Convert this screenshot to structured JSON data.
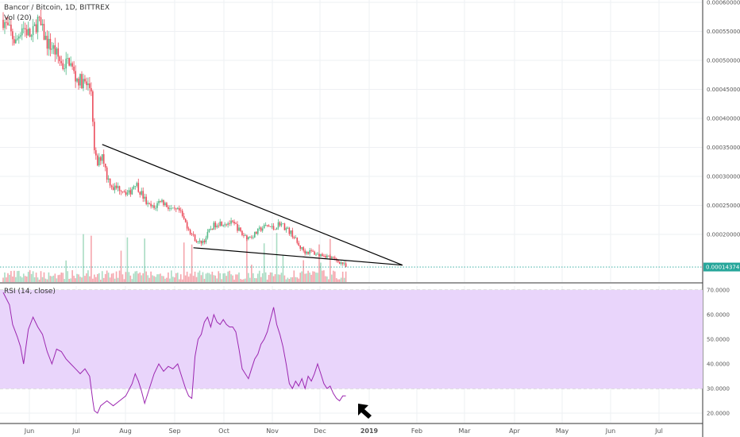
{
  "header": {
    "symbol": "Bancor / Bitcoin, 1D, BITTREX",
    "volume_label": "Vol (20)",
    "rsi_label": "RSI (14, close)"
  },
  "colors": {
    "up": "#53b987",
    "down": "#eb4d5c",
    "rsi_line": "#9c27b0",
    "rsi_band": "#e9d5fb",
    "trendline": "#000000",
    "last_price_bg": "#26a69a",
    "arrow": "#000000"
  },
  "chart_data": [
    {
      "type": "candlestick",
      "title": "Bancor / Bitcoin, 1D, BITTREX",
      "x_tick_labels": [
        "Jun",
        "Jul",
        "Aug",
        "Sep",
        "Oct",
        "Nov",
        "Dec",
        "2019",
        "Feb",
        "Mar",
        "Apr",
        "May",
        "Jun",
        "Jul"
      ],
      "y_tick_labels": [
        "0.00060000",
        "0.00055000",
        "0.00050000",
        "0.00045000",
        "0.00040000",
        "0.00035000",
        "0.00030000",
        "0.00025000",
        "0.00020000"
      ],
      "last_price_label": "0.00014374",
      "last_price": 0.00014374,
      "ylim": [
        0.00013,
        0.00061
      ],
      "close_keypoints": [
        [
          0,
          0.00057
        ],
        [
          8,
          0.00053
        ],
        [
          12,
          0.00056
        ],
        [
          18,
          0.00054
        ],
        [
          22,
          0.00057
        ],
        [
          28,
          0.00053
        ],
        [
          32,
          0.00052
        ],
        [
          38,
          0.00049
        ],
        [
          42,
          0.0005
        ],
        [
          46,
          0.00047
        ],
        [
          52,
          0.00046
        ],
        [
          56,
          0.00045
        ],
        [
          57,
          0.0004
        ],
        [
          58,
          0.00034
        ],
        [
          60,
          0.00032
        ],
        [
          63,
          0.00034
        ],
        [
          66,
          0.0003
        ],
        [
          70,
          0.00028
        ],
        [
          75,
          0.00028
        ],
        [
          80,
          0.00027
        ],
        [
          84,
          0.00029
        ],
        [
          88,
          0.00027
        ],
        [
          92,
          0.00025
        ],
        [
          96,
          0.000245
        ],
        [
          100,
          0.00026
        ],
        [
          104,
          0.00025
        ],
        [
          108,
          0.00024
        ],
        [
          112,
          0.00024
        ],
        [
          116,
          0.00022
        ],
        [
          120,
          0.0002
        ],
        [
          124,
          0.000185
        ],
        [
          128,
          0.00019
        ],
        [
          132,
          0.00021
        ],
        [
          136,
          0.00022
        ],
        [
          140,
          0.00022
        ],
        [
          144,
          0.00022
        ],
        [
          148,
          0.000215
        ],
        [
          152,
          0.0002
        ],
        [
          156,
          0.000195
        ],
        [
          160,
          0.0002
        ],
        [
          164,
          0.00021
        ],
        [
          168,
          0.000215
        ],
        [
          172,
          0.00021
        ],
        [
          176,
          0.00022
        ],
        [
          180,
          0.00021
        ],
        [
          184,
          0.0002
        ],
        [
          188,
          0.00018
        ],
        [
          192,
          0.00017
        ],
        [
          196,
          0.00017
        ],
        [
          200,
          0.000165
        ],
        [
          204,
          0.000165
        ],
        [
          208,
          0.00016
        ],
        [
          212,
          0.000155
        ],
        [
          216,
          0.00015
        ],
        [
          218,
          0.00014374
        ]
      ],
      "trendlines": [
        {
          "name": "upper",
          "from": [
            63,
            0.000355
          ],
          "to": [
            254,
            0.000147
          ]
        },
        {
          "name": "lower",
          "from": [
            121,
            0.000177
          ],
          "to": [
            254,
            0.000147
          ]
        }
      ]
    },
    {
      "type": "line",
      "title": "RSI (14, close)",
      "y_tick_labels": [
        "70.0000",
        "60.0000",
        "50.0000",
        "40.0000",
        "30.0000",
        "20.0000"
      ],
      "ylim": [
        16,
        73
      ],
      "band": [
        30,
        70
      ],
      "rsi_keypoints": [
        [
          0,
          69
        ],
        [
          4,
          64
        ],
        [
          6,
          56
        ],
        [
          9,
          51
        ],
        [
          11,
          47
        ],
        [
          13,
          40
        ],
        [
          16,
          54
        ],
        [
          19,
          59
        ],
        [
          22,
          55
        ],
        [
          25,
          52
        ],
        [
          28,
          45
        ],
        [
          31,
          40
        ],
        [
          34,
          46
        ],
        [
          37,
          45
        ],
        [
          40,
          42
        ],
        [
          43,
          40
        ],
        [
          46,
          38
        ],
        [
          49,
          36
        ],
        [
          52,
          38
        ],
        [
          55,
          35
        ],
        [
          57,
          25
        ],
        [
          58,
          21
        ],
        [
          60,
          20
        ],
        [
          62,
          23
        ],
        [
          66,
          25
        ],
        [
          70,
          23
        ],
        [
          74,
          25
        ],
        [
          78,
          27
        ],
        [
          82,
          32
        ],
        [
          84,
          36
        ],
        [
          86,
          33
        ],
        [
          88,
          29
        ],
        [
          90,
          24
        ],
        [
          93,
          30
        ],
        [
          96,
          36
        ],
        [
          99,
          40
        ],
        [
          102,
          37
        ],
        [
          105,
          39
        ],
        [
          108,
          38
        ],
        [
          111,
          40
        ],
        [
          114,
          34
        ],
        [
          116,
          30
        ],
        [
          118,
          27
        ],
        [
          120,
          26
        ],
        [
          122,
          43
        ],
        [
          124,
          50
        ],
        [
          126,
          52
        ],
        [
          128,
          57
        ],
        [
          130,
          59
        ],
        [
          132,
          55
        ],
        [
          134,
          60
        ],
        [
          136,
          57
        ],
        [
          138,
          56
        ],
        [
          140,
          58
        ],
        [
          142,
          56
        ],
        [
          144,
          55
        ],
        [
          146,
          55
        ],
        [
          148,
          53
        ],
        [
          150,
          46
        ],
        [
          152,
          38
        ],
        [
          154,
          36
        ],
        [
          156,
          34
        ],
        [
          158,
          38
        ],
        [
          160,
          42
        ],
        [
          162,
          44
        ],
        [
          164,
          48
        ],
        [
          166,
          50
        ],
        [
          168,
          53
        ],
        [
          170,
          58
        ],
        [
          172,
          63
        ],
        [
          174,
          56
        ],
        [
          176,
          52
        ],
        [
          178,
          47
        ],
        [
          180,
          40
        ],
        [
          182,
          32
        ],
        [
          184,
          30
        ],
        [
          186,
          33
        ],
        [
          188,
          31
        ],
        [
          190,
          34
        ],
        [
          192,
          30
        ],
        [
          194,
          35
        ],
        [
          196,
          33
        ],
        [
          198,
          36
        ],
        [
          200,
          40
        ],
        [
          202,
          36
        ],
        [
          204,
          32
        ],
        [
          206,
          30
        ],
        [
          208,
          31
        ],
        [
          210,
          28
        ],
        [
          212,
          26
        ],
        [
          214,
          25
        ],
        [
          216,
          27
        ],
        [
          218,
          27
        ]
      ]
    }
  ]
}
